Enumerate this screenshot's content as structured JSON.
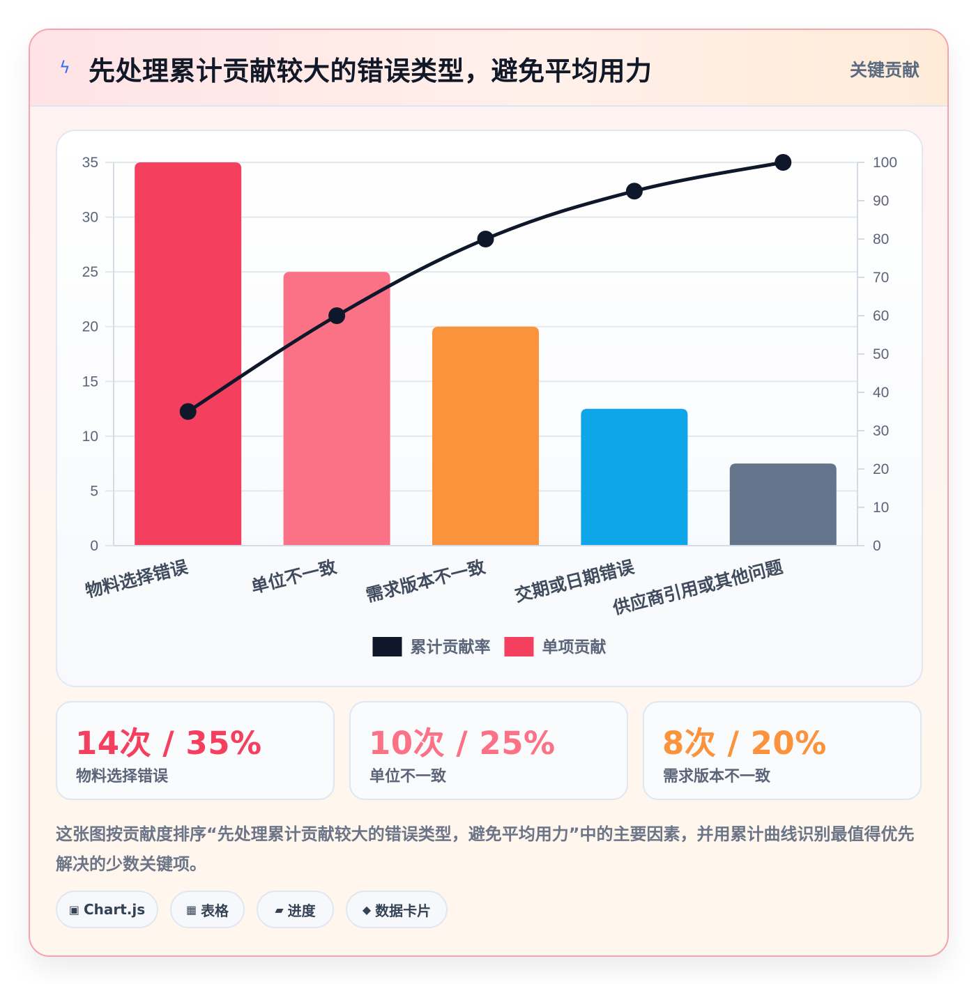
{
  "header": {
    "icon": "lightning-icon",
    "title": "先处理累计贡献较大的错误类型，避免平均用力",
    "badge": "关键贡献"
  },
  "chart_data": {
    "type": "bar",
    "categories": [
      "物料选择错误",
      "单位不一致",
      "需求版本不一致",
      "交期或日期错误",
      "供应商引用或其他问题"
    ],
    "series": [
      {
        "name": "单项贡献",
        "type": "bar",
        "axis": "left",
        "values": [
          35,
          25,
          20,
          12.5,
          7.5
        ],
        "colors": [
          "#f43f5e",
          "#fb7185",
          "#fb923c",
          "#0ea5e9",
          "#64748b"
        ]
      },
      {
        "name": "累计贡献率",
        "type": "line",
        "axis": "right",
        "values": [
          35,
          60,
          80,
          92.5,
          100
        ],
        "color": "#0f172a"
      }
    ],
    "y_left": {
      "min": 0,
      "max": 35,
      "ticks": [
        0,
        5,
        10,
        15,
        20,
        25,
        30,
        35
      ]
    },
    "y_right": {
      "min": 0,
      "max": 100,
      "ticks": [
        0,
        10,
        20,
        30,
        40,
        50,
        60,
        70,
        80,
        90,
        100
      ]
    },
    "grid": true,
    "legend": {
      "position": "bottom",
      "items": [
        {
          "label": "累计贡献率",
          "color": "#0f172a"
        },
        {
          "label": "单项贡献",
          "color": "#f43f5e"
        }
      ]
    }
  },
  "stats": [
    {
      "value": "14次 / 35%",
      "label": "物料选择错误",
      "color": "#f43f5e"
    },
    {
      "value": "10次 / 25%",
      "label": "单位不一致",
      "color": "#fb7185"
    },
    {
      "value": "8次 / 20%",
      "label": "需求版本不一致",
      "color": "#fb923c"
    }
  ],
  "description": "这张图按贡献度排序“先处理累计贡献较大的错误类型，避免平均用力”中的主要因素，并用累计曲线识别最值得优先解决的少数关键项。",
  "chips": [
    {
      "icon": "▣",
      "label": "Chart.js"
    },
    {
      "icon": "▦",
      "label": "表格"
    },
    {
      "icon": "▰",
      "label": "进度"
    },
    {
      "icon": "◆",
      "label": "数据卡片"
    }
  ]
}
